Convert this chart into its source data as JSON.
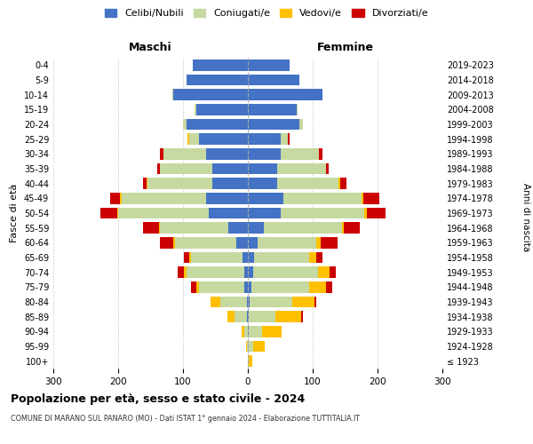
{
  "age_groups": [
    "100+",
    "95-99",
    "90-94",
    "85-89",
    "80-84",
    "75-79",
    "70-74",
    "65-69",
    "60-64",
    "55-59",
    "50-54",
    "45-49",
    "40-44",
    "35-39",
    "30-34",
    "25-29",
    "20-24",
    "15-19",
    "10-14",
    "5-9",
    "0-4"
  ],
  "birth_years": [
    "≤ 1923",
    "1924-1928",
    "1929-1933",
    "1934-1938",
    "1939-1943",
    "1944-1948",
    "1949-1953",
    "1954-1958",
    "1959-1963",
    "1964-1968",
    "1969-1973",
    "1974-1978",
    "1979-1983",
    "1984-1988",
    "1989-1993",
    "1994-1998",
    "1999-2003",
    "2004-2008",
    "2009-2013",
    "2014-2018",
    "2019-2023"
  ],
  "colors": {
    "celibe": "#4472c4",
    "coniugato": "#c5d9a0",
    "vedovo": "#ffc000",
    "divorziato": "#cc0000"
  },
  "maschi": {
    "celibe": [
      0,
      0,
      0,
      1,
      2,
      5,
      5,
      8,
      18,
      30,
      60,
      65,
      55,
      55,
      65,
      75,
      95,
      80,
      115,
      95,
      85
    ],
    "coniugato": [
      0,
      1,
      5,
      20,
      40,
      70,
      90,
      80,
      95,
      105,
      140,
      130,
      100,
      80,
      65,
      15,
      5,
      2,
      2,
      0,
      0
    ],
    "vedovo": [
      0,
      2,
      5,
      10,
      15,
      5,
      3,
      2,
      2,
      2,
      2,
      2,
      1,
      0,
      0,
      3,
      0,
      0,
      0,
      0,
      0
    ],
    "divorziato": [
      0,
      0,
      0,
      0,
      0,
      8,
      10,
      8,
      20,
      25,
      25,
      15,
      5,
      5,
      5,
      0,
      0,
      0,
      0,
      0,
      0
    ]
  },
  "femmine": {
    "nubile": [
      0,
      0,
      2,
      2,
      3,
      5,
      8,
      10,
      15,
      25,
      50,
      55,
      45,
      45,
      50,
      50,
      80,
      75,
      115,
      80,
      65
    ],
    "coniugata": [
      2,
      8,
      20,
      40,
      65,
      90,
      100,
      85,
      90,
      120,
      130,
      120,
      95,
      75,
      60,
      12,
      5,
      2,
      0,
      0,
      0
    ],
    "vedova": [
      5,
      18,
      30,
      40,
      35,
      25,
      18,
      10,
      8,
      3,
      3,
      3,
      2,
      0,
      0,
      0,
      0,
      0,
      0,
      0,
      0
    ],
    "divorziata": [
      0,
      0,
      0,
      3,
      3,
      10,
      10,
      10,
      25,
      25,
      30,
      25,
      10,
      5,
      5,
      3,
      0,
      0,
      0,
      0,
      0
    ]
  },
  "xlim": 300,
  "title": "Popolazione per età, sesso e stato civile - 2024",
  "subtitle": "COMUNE DI MARANO SUL PANARO (MO) - Dati ISTAT 1° gennaio 2024 - Elaborazione TUTTITALIA.IT",
  "ylabel": "Fasce di età",
  "ylabel_right": "Anni di nascita",
  "xlabel_left": "Maschi",
  "xlabel_right": "Femmine",
  "bg_color": "#ffffff",
  "grid_color": "#cccccc"
}
